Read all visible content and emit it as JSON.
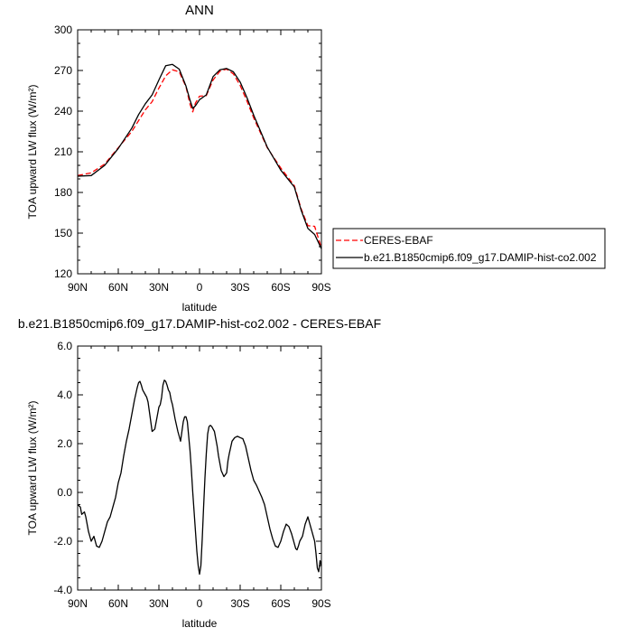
{
  "chart_data": [
    {
      "type": "line",
      "title": "ANN",
      "xlabel": "latitude",
      "ylabel": "TOA upward LW flux (W/m²)",
      "ylim": [
        120,
        300
      ],
      "yticks": [
        "120",
        "150",
        "180",
        "210",
        "240",
        "270",
        "300"
      ],
      "xlim": [
        -90,
        90
      ],
      "xticks": [
        "90N",
        "60N",
        "30N",
        "0",
        "30S",
        "60S",
        "90S"
      ],
      "legend": {
        "placement": "right",
        "entries": [
          "CERES-EBAF",
          "b.e21.B1850cmip6.f09_g17.DAMIP-hist-co2.002"
        ]
      },
      "series": [
        {
          "name": "CERES-EBAF",
          "style": "dashed",
          "color": "#ff0000",
          "x": [
            -90,
            -80,
            -70,
            -60,
            -50,
            -45,
            -40,
            -35,
            -30,
            -25,
            -20,
            -15,
            -10,
            -7,
            -5,
            -3,
            0,
            5,
            10,
            15,
            20,
            25,
            30,
            35,
            40,
            50,
            60,
            70,
            75,
            80,
            85,
            90
          ],
          "y": [
            192.5,
            194.5,
            201,
            213,
            225,
            233,
            241,
            247,
            257,
            266,
            270.5,
            269,
            258,
            245,
            239.5,
            246,
            251,
            251.5,
            263,
            269.5,
            271,
            267.5,
            259,
            247.5,
            235,
            213,
            198,
            185,
            168,
            155.5,
            155,
            139
          ]
        },
        {
          "name": "b.e21.B1850cmip6.f09_g17.DAMIP-hist-co2.002",
          "style": "solid",
          "color": "#000000",
          "x": [
            -90,
            -80,
            -70,
            -60,
            -50,
            -45,
            -40,
            -35,
            -30,
            -25,
            -20,
            -15,
            -10,
            -7,
            -5,
            -3,
            0,
            5,
            10,
            15,
            20,
            25,
            30,
            35,
            40,
            50,
            60,
            70,
            75,
            80,
            85,
            90
          ],
          "y": [
            192,
            192.5,
            200,
            212.5,
            227.5,
            237.5,
            245.5,
            252,
            263,
            273.5,
            274.5,
            271,
            258.5,
            248,
            242,
            244,
            248.5,
            252,
            265.5,
            270.5,
            271.5,
            269,
            261.5,
            250,
            237,
            213.5,
            196.5,
            184,
            167,
            153.5,
            149,
            138.5
          ]
        }
      ]
    },
    {
      "type": "line",
      "title": "b.e21.B1850cmip6.f09_g17.DAMIP-hist-co2.002 - CERES-EBAF",
      "xlabel": "latitude",
      "ylabel": "TOA upward LW flux (W/m²)",
      "ylim": [
        -4,
        6
      ],
      "yticks": [
        "-4.0",
        "-2.0",
        "0.0",
        "2.0",
        "4.0",
        "6.0"
      ],
      "xlim": [
        -90,
        90
      ],
      "xticks": [
        "90N",
        "60N",
        "30N",
        "0",
        "30S",
        "60S",
        "90S"
      ],
      "series": [
        {
          "color": "#000000",
          "x": [
            -90,
            -88,
            -87,
            -85,
            -84,
            -82,
            -80,
            -78,
            -76,
            -74,
            -72,
            -70,
            -68,
            -66,
            -64,
            -62,
            -60,
            -58,
            -56,
            -54,
            -52,
            -50,
            -48,
            -46,
            -45,
            -44,
            -43,
            -42,
            -40,
            -39,
            -38,
            -37,
            -36,
            -35,
            -33,
            -31,
            -30,
            -29,
            -28,
            -27,
            -26,
            -25,
            -24,
            -23,
            -22,
            -21,
            -20,
            -19,
            -18,
            -16,
            -14,
            -12,
            -11,
            -10,
            -9,
            -8,
            -7,
            -6,
            -5,
            -4,
            -3,
            -2,
            -1,
            0,
            1,
            2,
            3,
            4,
            5,
            6,
            7,
            8,
            9,
            10,
            11,
            12,
            13,
            14,
            16,
            18,
            20,
            21,
            22,
            23,
            24,
            26,
            28,
            30,
            32,
            34,
            36,
            38,
            40,
            42,
            44,
            46,
            48,
            50,
            52,
            54,
            56,
            58,
            60,
            62,
            64,
            66,
            68,
            70,
            71,
            72,
            73,
            74,
            76,
            78,
            80,
            82,
            84,
            85,
            86,
            87,
            88,
            89,
            90
          ],
          "y": [
            -0.5,
            -0.6,
            -0.9,
            -0.8,
            -1.0,
            -1.6,
            -2.0,
            -1.8,
            -2.2,
            -2.25,
            -2.0,
            -1.6,
            -1.2,
            -1.0,
            -0.6,
            -0.2,
            0.4,
            0.8,
            1.5,
            2.1,
            2.6,
            3.2,
            3.8,
            4.3,
            4.5,
            4.55,
            4.4,
            4.2,
            4.0,
            3.9,
            3.7,
            3.3,
            2.9,
            2.5,
            2.6,
            3.2,
            3.5,
            3.6,
            3.9,
            4.4,
            4.6,
            4.55,
            4.4,
            4.2,
            4.1,
            3.8,
            3.6,
            3.3,
            3.0,
            2.5,
            2.1,
            2.9,
            3.1,
            3.1,
            2.9,
            2.3,
            1.7,
            0.9,
            0.0,
            -0.8,
            -1.6,
            -2.4,
            -3.0,
            -3.35,
            -3.0,
            -1.9,
            -0.6,
            0.6,
            1.6,
            2.4,
            2.7,
            2.75,
            2.7,
            2.6,
            2.5,
            2.2,
            1.9,
            1.5,
            0.9,
            0.65,
            0.8,
            1.3,
            1.6,
            1.85,
            2.1,
            2.25,
            2.3,
            2.25,
            2.2,
            1.9,
            1.4,
            0.9,
            0.5,
            0.3,
            0.05,
            -0.2,
            -0.5,
            -1.0,
            -1.5,
            -1.9,
            -2.2,
            -2.25,
            -2.0,
            -1.6,
            -1.3,
            -1.4,
            -1.7,
            -2.1,
            -2.3,
            -2.35,
            -2.2,
            -2.0,
            -1.8,
            -1.3,
            -1.0,
            -1.4,
            -1.8,
            -2.0,
            -2.5,
            -3.1,
            -3.25,
            -2.8,
            -3.0
          ]
        }
      ]
    }
  ]
}
